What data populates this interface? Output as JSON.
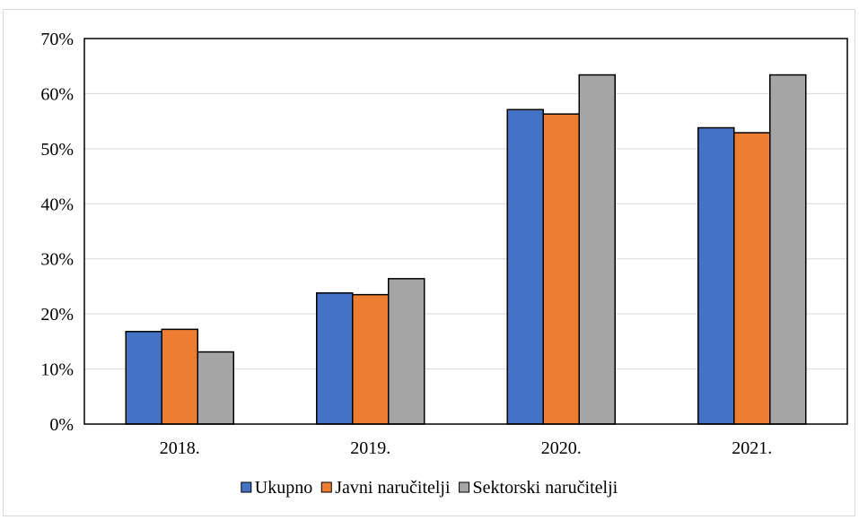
{
  "chart_data": {
    "type": "bar",
    "title": "",
    "xlabel": "",
    "ylabel": "",
    "categories": [
      "2018.",
      "2019.",
      "2020.",
      "2021."
    ],
    "series": [
      {
        "name": "Ukupno",
        "color": "#4472c4",
        "values": [
          0.168,
          0.238,
          0.571,
          0.538
        ]
      },
      {
        "name": "Javni naručitelji",
        "color": "#ed7d31",
        "values": [
          0.172,
          0.235,
          0.563,
          0.529
        ]
      },
      {
        "name": "Sektorski naručitelji",
        "color": "#a5a5a5",
        "values": [
          0.131,
          0.264,
          0.634,
          0.634
        ]
      }
    ],
    "ylim": [
      0,
      0.7
    ],
    "yticks": [
      0,
      0.1,
      0.2,
      0.3,
      0.4,
      0.5,
      0.6,
      0.7
    ],
    "ytick_labels": [
      "0%",
      "10%",
      "20%",
      "30%",
      "40%",
      "50%",
      "60%",
      "70%"
    ],
    "grid": true,
    "gridline_color": "#d9d9d9",
    "bar_outline_color": "#000000",
    "legend_position": "bottom"
  }
}
